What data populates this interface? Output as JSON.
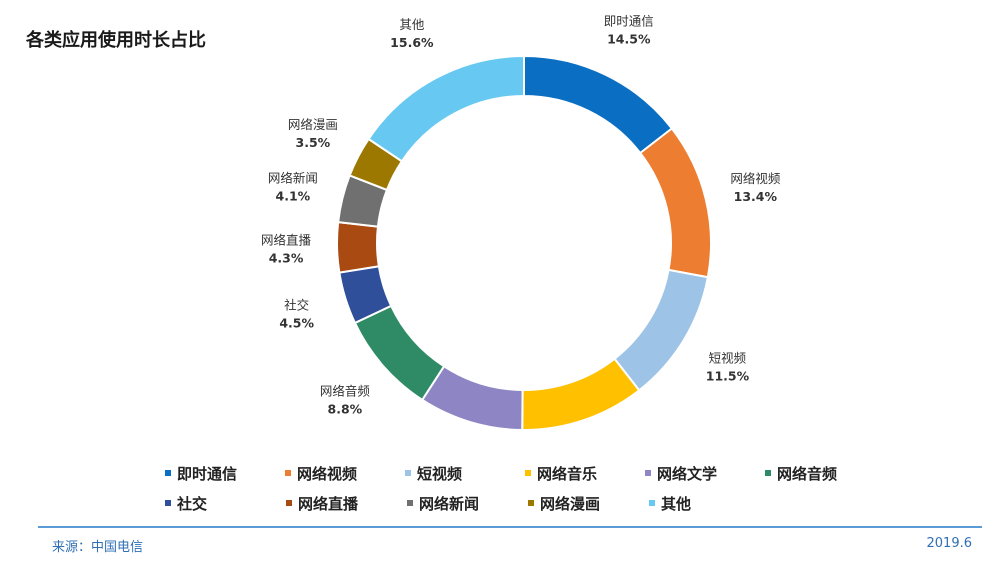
{
  "title": "各类应用使用时长占比",
  "footer": {
    "source": "来源：中国电信",
    "date": "2019.6"
  },
  "chart_data": {
    "type": "pie",
    "variant": "donut",
    "title": "各类应用使用时长占比",
    "unit": "%",
    "legend_position": "bottom",
    "series": [
      {
        "name": "即时通信",
        "label": "14.5%",
        "value": 14.5,
        "color": "#0a6fc2"
      },
      {
        "name": "网络视频",
        "label": "13.4%",
        "value": 13.4,
        "color": "#ed7d31"
      },
      {
        "name": "短视频",
        "label": "11.5%",
        "value": 11.5,
        "color": "#9dc3e6"
      },
      {
        "name": "网络音乐",
        "label": "10.7%",
        "value": 10.7,
        "color": "#ffc000"
      },
      {
        "name": "网络文学",
        "label": "9.0%",
        "value": 9.0,
        "color": "#8e86c4"
      },
      {
        "name": "网络音频",
        "label": "8.8%",
        "value": 8.8,
        "color": "#2e8b66"
      },
      {
        "name": "社交",
        "label": "4.5%",
        "value": 4.5,
        "color": "#2f4f9a"
      },
      {
        "name": "网络直播",
        "label": "4.3%",
        "value": 4.3,
        "color": "#a84a12"
      },
      {
        "name": "网络新闻",
        "label": "4.1%",
        "value": 4.1,
        "color": "#707070"
      },
      {
        "name": "网络漫画",
        "label": "3.5%",
        "value": 3.5,
        "color": "#9c7800"
      },
      {
        "name": "其他",
        "label": "15.6%",
        "value": 15.6,
        "color": "#67c8f2"
      }
    ]
  }
}
